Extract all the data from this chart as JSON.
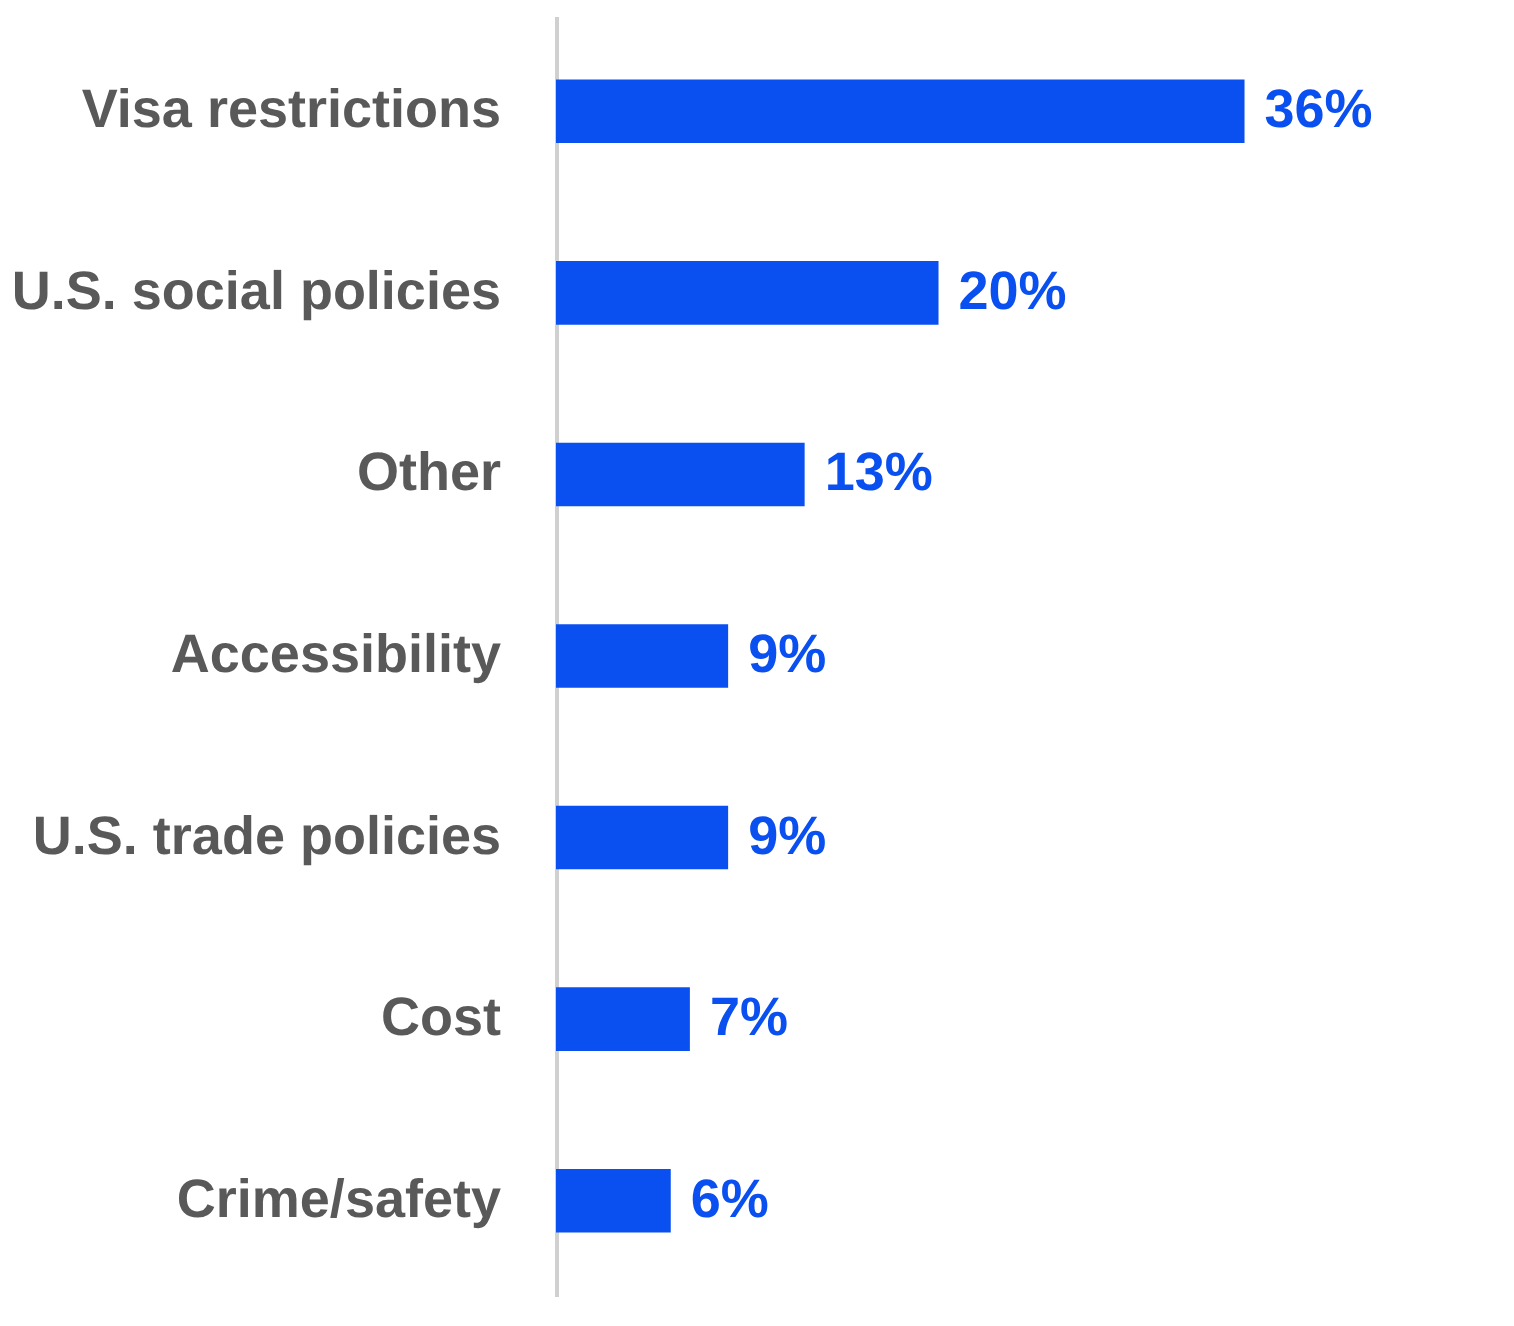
{
  "chart_data": {
    "type": "bar",
    "orientation": "horizontal",
    "categories": [
      "Visa restrictions",
      "U.S. social policies",
      "Other",
      "Accessibility",
      "U.S. trade policies",
      "Cost",
      "Crime/safety"
    ],
    "values": [
      36,
      20,
      13,
      9,
      9,
      7,
      6
    ],
    "value_labels": [
      "36%",
      "20%",
      "13%",
      "9%",
      "9%",
      "7%",
      "6%"
    ],
    "color": "#0a50f0",
    "grid": false,
    "legend": false,
    "tick_labels": "y"
  }
}
